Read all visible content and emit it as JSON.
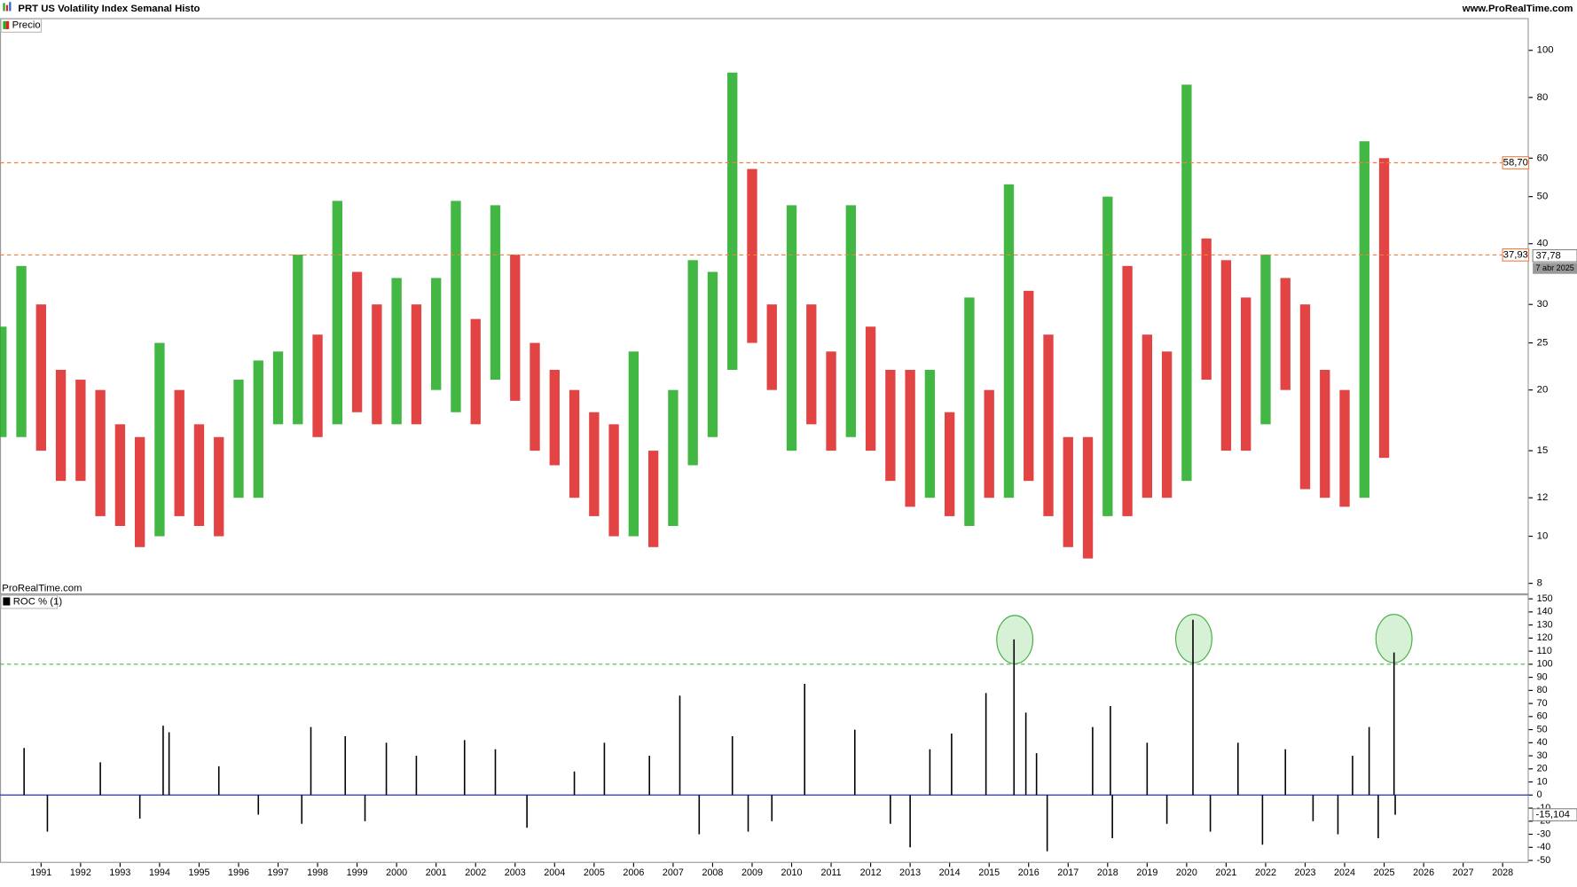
{
  "header": {
    "title": "PRT US Volatility Index Semanal Histo",
    "site": "www.ProRealTime.com"
  },
  "chart_data": [
    {
      "type": "range-bar",
      "legend": "Precio",
      "watermark": "ProRealTime.com",
      "log_scale": true,
      "up_color": "#22aa22",
      "down_color": "#dd2222",
      "xlim": [
        1989.96,
        2028.66
      ],
      "ylim": [
        7.63,
        115.4
      ],
      "yticks": [
        8,
        10,
        12,
        15,
        20,
        25,
        30,
        40,
        50,
        60,
        80,
        100
      ],
      "x": [
        1990.0,
        1990.5,
        1991.0,
        1991.5,
        1992.0,
        1992.5,
        1993.0,
        1993.5,
        1994.0,
        1994.5,
        1995.0,
        1995.5,
        1996.0,
        1996.5,
        1997.0,
        1997.5,
        1998.0,
        1998.5,
        1999.0,
        1999.5,
        2000.0,
        2000.5,
        2001.0,
        2001.5,
        2002.0,
        2002.5,
        2003.0,
        2003.5,
        2004.0,
        2004.5,
        2005.0,
        2005.5,
        2006.0,
        2006.5,
        2007.0,
        2007.5,
        2008.0,
        2008.5,
        2009.0,
        2009.5,
        2010.0,
        2010.5,
        2011.0,
        2011.5,
        2012.0,
        2012.5,
        2013.0,
        2013.5,
        2014.0,
        2014.5,
        2015.0,
        2015.5,
        2016.0,
        2016.5,
        2017.0,
        2017.5,
        2018.0,
        2018.5,
        2019.0,
        2019.5,
        2020.0,
        2020.5,
        2021.0,
        2021.5,
        2022.0,
        2022.5,
        2023.0,
        2023.5,
        2024.0,
        2024.5,
        2025.0
      ],
      "high": [
        27,
        36,
        30,
        22,
        21,
        20,
        17,
        16,
        25,
        20,
        17,
        16,
        21,
        23,
        24,
        38,
        26,
        49,
        35,
        30,
        34,
        30,
        34,
        49,
        28,
        48,
        38,
        25,
        22,
        20,
        18,
        17,
        24,
        15,
        20,
        37,
        35,
        90,
        57,
        30,
        48,
        30,
        24,
        48,
        27,
        22,
        22,
        22,
        18,
        31,
        20,
        53,
        32,
        26,
        16,
        16,
        50,
        36,
        26,
        24,
        85,
        41,
        37,
        31,
        38,
        34,
        30,
        22,
        20,
        65,
        60
      ],
      "low": [
        16,
        16,
        15,
        13,
        13,
        11,
        10.5,
        9.5,
        10,
        11,
        10.5,
        10,
        12,
        12,
        17,
        17,
        16,
        17,
        18,
        17,
        17,
        17,
        20,
        18,
        17,
        21,
        19,
        15,
        14,
        12,
        11,
        10,
        10,
        9.5,
        10.5,
        14,
        16,
        22,
        25,
        20,
        15,
        17,
        15,
        16,
        15,
        13,
        11.5,
        12,
        11,
        10.5,
        12,
        12,
        13,
        11,
        9.5,
        9,
        11,
        11,
        12,
        12,
        13,
        21,
        15,
        15,
        17,
        20,
        12.5,
        12,
        11.5,
        12,
        14.5
      ],
      "levels": [
        {
          "value": 58.7,
          "label": "58,70"
        },
        {
          "value": 37.93,
          "label": "37,93"
        }
      ],
      "level_color": "#f08040",
      "last_value": {
        "value": 37.78,
        "label": "37,78"
      },
      "last_date": "7 abr 2025"
    },
    {
      "type": "bar",
      "legend": "ROC % (1)",
      "color": "#000000",
      "zero_color": "#3344cc",
      "xlim": [
        1989.96,
        2028.66
      ],
      "ylim": [
        -51.1,
        151.9
      ],
      "xticks": [
        1991,
        1992,
        1993,
        1994,
        1995,
        1996,
        1997,
        1998,
        1999,
        2000,
        2001,
        2002,
        2003,
        2004,
        2005,
        2006,
        2007,
        2008,
        2009,
        2010,
        2011,
        2012,
        2013,
        2014,
        2015,
        2016,
        2017,
        2018,
        2019,
        2020,
        2021,
        2022,
        2023,
        2024,
        2025,
        2026,
        2027,
        2028
      ],
      "yticks": [
        150,
        140,
        130,
        120,
        110,
        100,
        90,
        80,
        70,
        60,
        50,
        40,
        30,
        20,
        10,
        0,
        -10,
        -20,
        -30,
        -40,
        -50
      ],
      "level": 100,
      "level_color": "#44bb44",
      "x": [
        1990.57,
        1991.16,
        1992.5,
        1993.5,
        1994.09,
        1994.24,
        1995.5,
        1996.5,
        1997.6,
        1997.83,
        1998.7,
        1999.2,
        1999.74,
        2000.5,
        2001.72,
        2002.5,
        2003.3,
        2004.5,
        2005.26,
        2006.4,
        2007.17,
        2007.66,
        2008.5,
        2008.9,
        2009.5,
        2010.33,
        2011.6,
        2012.5,
        2013.0,
        2013.5,
        2014.05,
        2014.92,
        2015.63,
        2015.93,
        2016.2,
        2016.47,
        2017.62,
        2018.07,
        2018.12,
        2019.0,
        2019.5,
        2020.16,
        2020.6,
        2021.3,
        2021.92,
        2022.5,
        2023.2,
        2023.83,
        2024.2,
        2024.62,
        2024.85,
        2025.25,
        2025.28
      ],
      "values": [
        36,
        -28,
        25,
        -18,
        53,
        48,
        22,
        -15,
        -22,
        52,
        45,
        -20,
        40,
        30,
        42,
        35,
        -25,
        18,
        40,
        30,
        76,
        -30,
        45,
        -28,
        -20,
        85,
        50,
        -22,
        -40,
        35,
        47,
        78,
        119,
        63,
        32,
        -43,
        52,
        68,
        -33,
        40,
        -22,
        134,
        -28,
        40,
        -38,
        35,
        -20,
        -30,
        30,
        52,
        -33,
        109,
        -15.104
      ],
      "last_value": {
        "value": -15.104,
        "label": "-15,104"
      }
    }
  ]
}
